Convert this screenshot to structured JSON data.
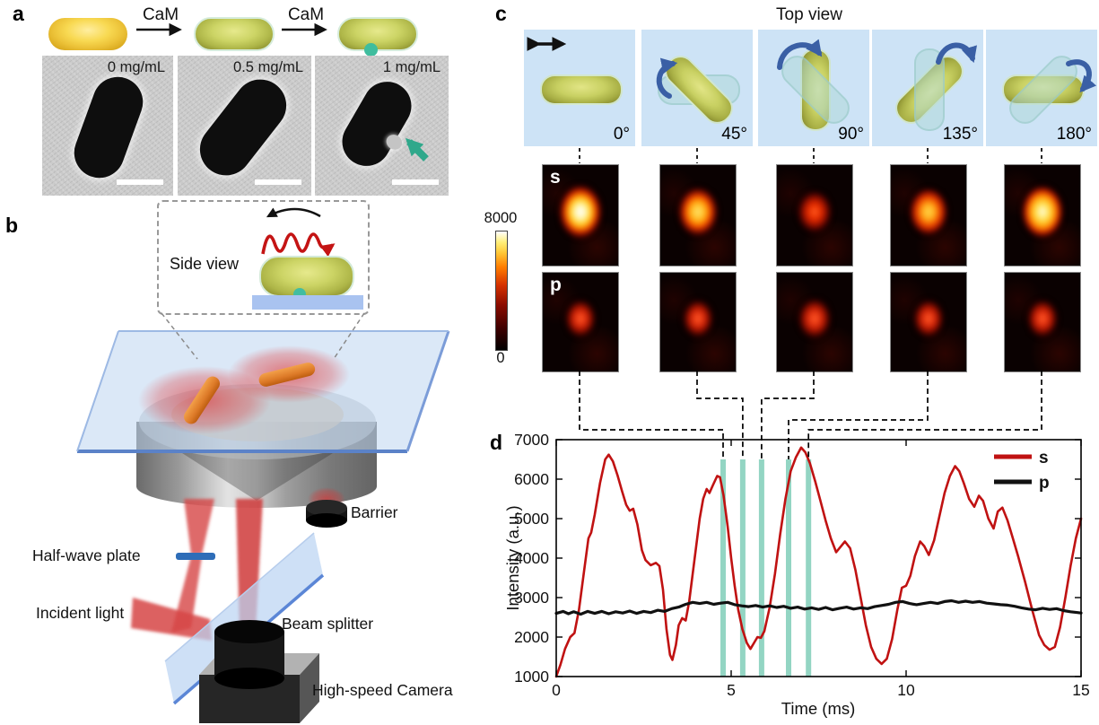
{
  "figure": {
    "panel_a": {
      "label": "a",
      "reaction": {
        "step1_label": "CaM",
        "step2_label": "CaM"
      },
      "tem_images": [
        {
          "concentration_label": "0 mg/mL"
        },
        {
          "concentration_label": "0.5 mg/mL"
        },
        {
          "concentration_label": "1 mg/mL"
        }
      ]
    },
    "panel_b": {
      "label": "b",
      "inset_title": "Side view",
      "component_labels": {
        "barrier": "Barrier",
        "half_wave_plate": "Half-wave plate",
        "incident_light": "Incident light",
        "beam_splitter": "Beam splitter",
        "camera": "High-speed Camera"
      }
    },
    "panel_c": {
      "label": "c",
      "title": "Top view",
      "orientations": [
        {
          "angle": "0°"
        },
        {
          "angle": "45°"
        },
        {
          "angle": "90°"
        },
        {
          "angle": "135°"
        },
        {
          "angle": "180°"
        }
      ],
      "row_labels": {
        "s": "s",
        "p": "p"
      },
      "colorbar": {
        "max_label": "8000",
        "min_label": "0"
      },
      "psf_peak_intensity": {
        "s": [
          7800,
          6400,
          4300,
          6200,
          7400
        ],
        "p": [
          3000,
          3100,
          3300,
          3100,
          2900
        ]
      }
    },
    "panel_d": {
      "label": "d"
    }
  },
  "chart_data": {
    "type": "line",
    "title": "",
    "xlabel": "Time (ms)",
    "ylabel": "Intensity (a.u.)",
    "xlim": [
      0,
      15
    ],
    "ylim": [
      1000,
      7000
    ],
    "xticks": [
      0,
      5,
      10,
      15
    ],
    "yticks": [
      1000,
      2000,
      3000,
      4000,
      5000,
      6000,
      7000
    ],
    "grid": false,
    "legend_position": "top-right",
    "marker_lines": {
      "color": "#93d5c3",
      "y_top": 6500,
      "t_values": [
        4.77,
        5.33,
        5.87,
        6.64,
        7.21
      ]
    },
    "series": [
      {
        "name": "s",
        "color": "#c01212",
        "points": [
          [
            0,
            1000
          ],
          [
            0.12,
            1300
          ],
          [
            0.25,
            1700
          ],
          [
            0.4,
            2000
          ],
          [
            0.52,
            2100
          ],
          [
            0.65,
            2700
          ],
          [
            0.8,
            3700
          ],
          [
            0.92,
            4500
          ],
          [
            1.0,
            4650
          ],
          [
            1.1,
            5100
          ],
          [
            1.25,
            5900
          ],
          [
            1.4,
            6500
          ],
          [
            1.5,
            6620
          ],
          [
            1.62,
            6450
          ],
          [
            1.75,
            6100
          ],
          [
            1.88,
            5700
          ],
          [
            2.0,
            5350
          ],
          [
            2.1,
            5200
          ],
          [
            2.2,
            5250
          ],
          [
            2.32,
            4850
          ],
          [
            2.45,
            4200
          ],
          [
            2.55,
            3950
          ],
          [
            2.7,
            3820
          ],
          [
            2.85,
            3880
          ],
          [
            2.95,
            3800
          ],
          [
            3.05,
            3200
          ],
          [
            3.15,
            2200
          ],
          [
            3.25,
            1550
          ],
          [
            3.32,
            1420
          ],
          [
            3.42,
            1800
          ],
          [
            3.5,
            2300
          ],
          [
            3.6,
            2480
          ],
          [
            3.7,
            2420
          ],
          [
            3.8,
            2900
          ],
          [
            3.9,
            3600
          ],
          [
            4.0,
            4300
          ],
          [
            4.1,
            5000
          ],
          [
            4.2,
            5500
          ],
          [
            4.3,
            5750
          ],
          [
            4.38,
            5650
          ],
          [
            4.48,
            5850
          ],
          [
            4.6,
            6080
          ],
          [
            4.68,
            6050
          ],
          [
            4.78,
            5600
          ],
          [
            4.9,
            4800
          ],
          [
            5.0,
            4000
          ],
          [
            5.1,
            3300
          ],
          [
            5.2,
            2700
          ],
          [
            5.32,
            2200
          ],
          [
            5.45,
            1850
          ],
          [
            5.55,
            1700
          ],
          [
            5.65,
            1850
          ],
          [
            5.75,
            2000
          ],
          [
            5.85,
            1980
          ],
          [
            5.95,
            2150
          ],
          [
            6.1,
            2750
          ],
          [
            6.25,
            3600
          ],
          [
            6.4,
            4600
          ],
          [
            6.55,
            5500
          ],
          [
            6.7,
            6200
          ],
          [
            6.85,
            6550
          ],
          [
            7.0,
            6800
          ],
          [
            7.12,
            6680
          ],
          [
            7.25,
            6400
          ],
          [
            7.4,
            5950
          ],
          [
            7.55,
            5450
          ],
          [
            7.7,
            4950
          ],
          [
            7.85,
            4500
          ],
          [
            8.0,
            4150
          ],
          [
            8.12,
            4280
          ],
          [
            8.25,
            4420
          ],
          [
            8.4,
            4250
          ],
          [
            8.55,
            3700
          ],
          [
            8.7,
            3000
          ],
          [
            8.85,
            2300
          ],
          [
            9.0,
            1750
          ],
          [
            9.15,
            1450
          ],
          [
            9.3,
            1320
          ],
          [
            9.45,
            1450
          ],
          [
            9.6,
            1950
          ],
          [
            9.75,
            2700
          ],
          [
            9.88,
            3250
          ],
          [
            10.0,
            3300
          ],
          [
            10.12,
            3550
          ],
          [
            10.25,
            4050
          ],
          [
            10.4,
            4420
          ],
          [
            10.52,
            4300
          ],
          [
            10.65,
            4080
          ],
          [
            10.8,
            4450
          ],
          [
            10.95,
            5050
          ],
          [
            11.1,
            5650
          ],
          [
            11.25,
            6080
          ],
          [
            11.4,
            6330
          ],
          [
            11.52,
            6200
          ],
          [
            11.65,
            5900
          ],
          [
            11.8,
            5500
          ],
          [
            11.95,
            5300
          ],
          [
            12.08,
            5580
          ],
          [
            12.2,
            5450
          ],
          [
            12.35,
            5000
          ],
          [
            12.5,
            4750
          ],
          [
            12.62,
            5180
          ],
          [
            12.75,
            5280
          ],
          [
            12.9,
            4950
          ],
          [
            13.05,
            4500
          ],
          [
            13.2,
            4050
          ],
          [
            13.4,
            3400
          ],
          [
            13.6,
            2700
          ],
          [
            13.8,
            2050
          ],
          [
            13.95,
            1800
          ],
          [
            14.1,
            1680
          ],
          [
            14.25,
            1750
          ],
          [
            14.4,
            2250
          ],
          [
            14.55,
            3000
          ],
          [
            14.7,
            3800
          ],
          [
            14.85,
            4500
          ],
          [
            15,
            5000
          ]
        ]
      },
      {
        "name": "p",
        "color": "#111111",
        "points": [
          [
            0,
            2600
          ],
          [
            0.2,
            2650
          ],
          [
            0.35,
            2590
          ],
          [
            0.5,
            2640
          ],
          [
            0.7,
            2580
          ],
          [
            0.9,
            2650
          ],
          [
            1.1,
            2600
          ],
          [
            1.3,
            2650
          ],
          [
            1.5,
            2590
          ],
          [
            1.7,
            2640
          ],
          [
            1.9,
            2610
          ],
          [
            2.1,
            2660
          ],
          [
            2.3,
            2600
          ],
          [
            2.5,
            2650
          ],
          [
            2.7,
            2620
          ],
          [
            2.9,
            2680
          ],
          [
            3.1,
            2650
          ],
          [
            3.3,
            2720
          ],
          [
            3.5,
            2760
          ],
          [
            3.7,
            2830
          ],
          [
            3.9,
            2880
          ],
          [
            4.1,
            2850
          ],
          [
            4.3,
            2880
          ],
          [
            4.5,
            2830
          ],
          [
            4.7,
            2860
          ],
          [
            4.9,
            2880
          ],
          [
            5.1,
            2820
          ],
          [
            5.3,
            2790
          ],
          [
            5.5,
            2770
          ],
          [
            5.7,
            2800
          ],
          [
            5.9,
            2760
          ],
          [
            6.1,
            2790
          ],
          [
            6.3,
            2750
          ],
          [
            6.5,
            2780
          ],
          [
            6.7,
            2730
          ],
          [
            6.9,
            2760
          ],
          [
            7.1,
            2710
          ],
          [
            7.3,
            2740
          ],
          [
            7.5,
            2700
          ],
          [
            7.7,
            2750
          ],
          [
            7.9,
            2690
          ],
          [
            8.1,
            2730
          ],
          [
            8.3,
            2760
          ],
          [
            8.5,
            2710
          ],
          [
            8.7,
            2740
          ],
          [
            8.9,
            2720
          ],
          [
            9.1,
            2770
          ],
          [
            9.3,
            2800
          ],
          [
            9.5,
            2830
          ],
          [
            9.7,
            2880
          ],
          [
            9.9,
            2900
          ],
          [
            10.1,
            2850
          ],
          [
            10.3,
            2820
          ],
          [
            10.5,
            2850
          ],
          [
            10.7,
            2880
          ],
          [
            10.9,
            2850
          ],
          [
            11.1,
            2900
          ],
          [
            11.3,
            2920
          ],
          [
            11.5,
            2880
          ],
          [
            11.7,
            2910
          ],
          [
            11.9,
            2880
          ],
          [
            12.1,
            2900
          ],
          [
            12.3,
            2860
          ],
          [
            12.5,
            2840
          ],
          [
            12.7,
            2820
          ],
          [
            12.9,
            2810
          ],
          [
            13.1,
            2780
          ],
          [
            13.3,
            2740
          ],
          [
            13.5,
            2710
          ],
          [
            13.7,
            2690
          ],
          [
            13.9,
            2730
          ],
          [
            14.1,
            2700
          ],
          [
            14.3,
            2720
          ],
          [
            14.5,
            2670
          ],
          [
            14.7,
            2640
          ],
          [
            14.9,
            2620
          ],
          [
            15,
            2610
          ]
        ]
      }
    ]
  }
}
